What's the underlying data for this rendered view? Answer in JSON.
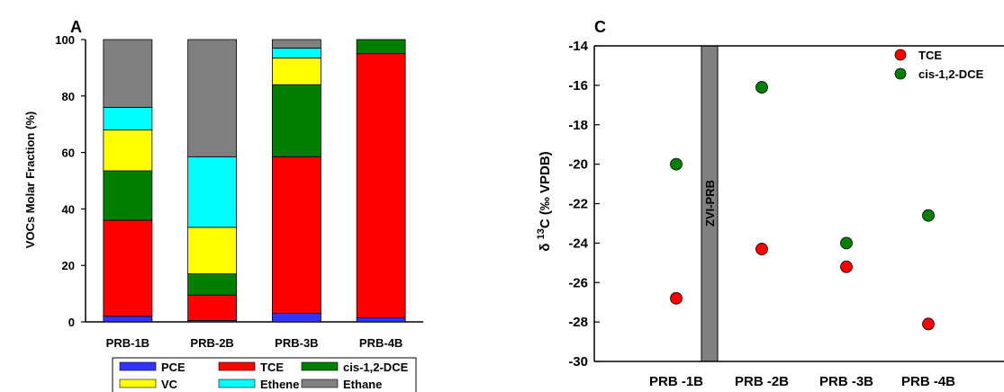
{
  "chart_data": [
    {
      "panel_label": "A",
      "type": "bar",
      "stacked": true,
      "categories": [
        "PRB-1B",
        "PRB-2B",
        "PRB-3B",
        "PRB-4B"
      ],
      "ylabel": "VOCs Molar Fraction (%)",
      "xlabel": "",
      "ylim": [
        0,
        100
      ],
      "yticks": [
        0,
        20,
        40,
        60,
        80,
        100
      ],
      "grid": false,
      "legend_position": "bottom",
      "series": [
        {
          "name": "PCE",
          "color": "#3333ff",
          "values": [
            2,
            0.5,
            3,
            1.5
          ]
        },
        {
          "name": "TCE",
          "color": "#ff0000",
          "values": [
            34,
            9,
            55.5,
            93.5
          ]
        },
        {
          "name": "cis-1,2-DCE",
          "color": "#007f00",
          "values": [
            17.5,
            7.5,
            25.5,
            5
          ]
        },
        {
          "name": "VC",
          "color": "#ffff00",
          "values": [
            14.5,
            16.5,
            9.5,
            0
          ]
        },
        {
          "name": "Ethene",
          "color": "#00ffff",
          "values": [
            8,
            25,
            3.5,
            0
          ]
        },
        {
          "name": "Ethane",
          "color": "#808080",
          "values": [
            24,
            41.5,
            3,
            0
          ]
        }
      ]
    },
    {
      "panel_label": "C",
      "type": "scatter",
      "categories": [
        "PRB -1B",
        "PRB -2B",
        "PRB -3B",
        "PRB -4B"
      ],
      "ylabel_prefix": "δ ",
      "ylabel_superscript": "13",
      "ylabel_main": "C (‰ VPDB)",
      "xlabel": "",
      "ylim": [
        -30,
        -14
      ],
      "yticks": [
        -30,
        -28,
        -26,
        -24,
        -22,
        -20,
        -18,
        -16,
        -14
      ],
      "grid": false,
      "legend_position": "top-right",
      "zone_label": "ZVI-PRB",
      "series": [
        {
          "name": "TCE",
          "color": "#ff0000",
          "values": [
            -26.8,
            -24.3,
            -25.2,
            -28.1
          ]
        },
        {
          "name": "cis-1,2-DCE",
          "color": "#007f00",
          "values": [
            -20.0,
            -16.1,
            -24.0,
            -22.6
          ]
        }
      ]
    }
  ]
}
